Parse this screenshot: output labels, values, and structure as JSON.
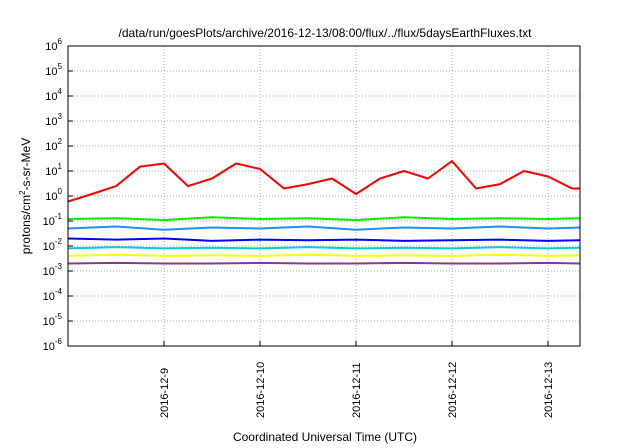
{
  "chart_data": {
    "type": "line",
    "title": "/data/run/goesPlots/archive/2016-12-13/08:00/flux/../flux/5daysEarthFluxes.txt",
    "xlabel": "Coordinated Universal Time (UTC)",
    "ylabel": "protons/cm²-s-sr-MeV",
    "y_scale": "log",
    "ylim": [
      "1e-6",
      "1e6"
    ],
    "xlim": [
      "2016-12-08 00:00",
      "2016-12-13 08:00"
    ],
    "x_tick_labels": [
      "2016-12-9",
      "2016-12-10",
      "2016-12-11",
      "2016-12-12",
      "2016-12-13"
    ],
    "grid": true,
    "series": [
      {
        "color": "#ff0000",
        "x": [
          "2016-12-08 00:00",
          "2016-12-08 06:00",
          "2016-12-08 12:00",
          "2016-12-08 18:00",
          "2016-12-09 00:00",
          "2016-12-09 06:00",
          "2016-12-09 12:00",
          "2016-12-09 18:00",
          "2016-12-10 00:00",
          "2016-12-10 06:00",
          "2016-12-10 12:00",
          "2016-12-10 18:00",
          "2016-12-11 00:00",
          "2016-12-11 06:00",
          "2016-12-11 12:00",
          "2016-12-11 18:00",
          "2016-12-12 00:00",
          "2016-12-12 06:00",
          "2016-12-12 12:00",
          "2016-12-12 18:00",
          "2016-12-13 00:00",
          "2016-12-13 06:00",
          "2016-12-13 08:00"
        ],
        "values": [
          0.6,
          1.2,
          2.5,
          15,
          20,
          2.5,
          5,
          20,
          12,
          2,
          3,
          5,
          1.2,
          5,
          10,
          5,
          25,
          2,
          3,
          10,
          6,
          2,
          2
        ]
      },
      {
        "color": "#00ee00",
        "x": [
          "2016-12-08 00:00",
          "2016-12-08 12:00",
          "2016-12-09 00:00",
          "2016-12-09 12:00",
          "2016-12-10 00:00",
          "2016-12-10 12:00",
          "2016-12-11 00:00",
          "2016-12-11 12:00",
          "2016-12-12 00:00",
          "2016-12-12 12:00",
          "2016-12-13 00:00",
          "2016-12-13 08:00"
        ],
        "values": [
          0.12,
          0.13,
          0.11,
          0.14,
          0.12,
          0.13,
          0.11,
          0.14,
          0.12,
          0.13,
          0.12,
          0.13
        ]
      },
      {
        "color": "#1e90ff",
        "x": [
          "2016-12-08 00:00",
          "2016-12-08 12:00",
          "2016-12-09 00:00",
          "2016-12-09 12:00",
          "2016-12-10 00:00",
          "2016-12-10 12:00",
          "2016-12-11 00:00",
          "2016-12-11 12:00",
          "2016-12-12 00:00",
          "2016-12-12 12:00",
          "2016-12-13 00:00",
          "2016-12-13 08:00"
        ],
        "values": [
          0.05,
          0.06,
          0.045,
          0.055,
          0.05,
          0.06,
          0.045,
          0.055,
          0.05,
          0.06,
          0.05,
          0.055
        ]
      },
      {
        "color": "#0000ff",
        "x": [
          "2016-12-08 00:00",
          "2016-12-08 12:00",
          "2016-12-09 00:00",
          "2016-12-09 12:00",
          "2016-12-10 00:00",
          "2016-12-10 12:00",
          "2016-12-11 00:00",
          "2016-12-11 12:00",
          "2016-12-12 00:00",
          "2016-12-12 12:00",
          "2016-12-13 00:00",
          "2016-12-13 08:00"
        ],
        "values": [
          0.02,
          0.018,
          0.02,
          0.016,
          0.018,
          0.017,
          0.018,
          0.016,
          0.017,
          0.018,
          0.016,
          0.017
        ]
      },
      {
        "color": "#00cdcd",
        "x": [
          "2016-12-08 00:00",
          "2016-12-08 12:00",
          "2016-12-09 00:00",
          "2016-12-09 12:00",
          "2016-12-10 00:00",
          "2016-12-10 12:00",
          "2016-12-11 00:00",
          "2016-12-11 12:00",
          "2016-12-12 00:00",
          "2016-12-12 12:00",
          "2016-12-13 00:00",
          "2016-12-13 08:00"
        ],
        "values": [
          0.008,
          0.009,
          0.008,
          0.0085,
          0.008,
          0.009,
          0.008,
          0.0085,
          0.008,
          0.009,
          0.008,
          0.0085
        ]
      },
      {
        "color": "#ffff00",
        "x": [
          "2016-12-08 00:00",
          "2016-12-08 12:00",
          "2016-12-09 00:00",
          "2016-12-09 12:00",
          "2016-12-10 00:00",
          "2016-12-10 12:00",
          "2016-12-11 00:00",
          "2016-12-11 12:00",
          "2016-12-12 00:00",
          "2016-12-12 12:00",
          "2016-12-13 00:00",
          "2016-12-13 08:00"
        ],
        "values": [
          0.004,
          0.0045,
          0.004,
          0.0042,
          0.004,
          0.0045,
          0.004,
          0.0042,
          0.004,
          0.0045,
          0.004,
          0.0042
        ]
      },
      {
        "color": "#8b3a8b",
        "x": [
          "2016-12-08 00:00",
          "2016-12-08 12:00",
          "2016-12-09 00:00",
          "2016-12-09 12:00",
          "2016-12-10 00:00",
          "2016-12-10 12:00",
          "2016-12-11 00:00",
          "2016-12-11 12:00",
          "2016-12-12 00:00",
          "2016-12-12 12:00",
          "2016-12-13 00:00",
          "2016-12-13 08:00"
        ],
        "values": [
          0.002,
          0.0021,
          0.002,
          0.002,
          0.0021,
          0.002,
          0.002,
          0.0021,
          0.002,
          0.002,
          0.0021,
          0.002
        ]
      }
    ]
  }
}
